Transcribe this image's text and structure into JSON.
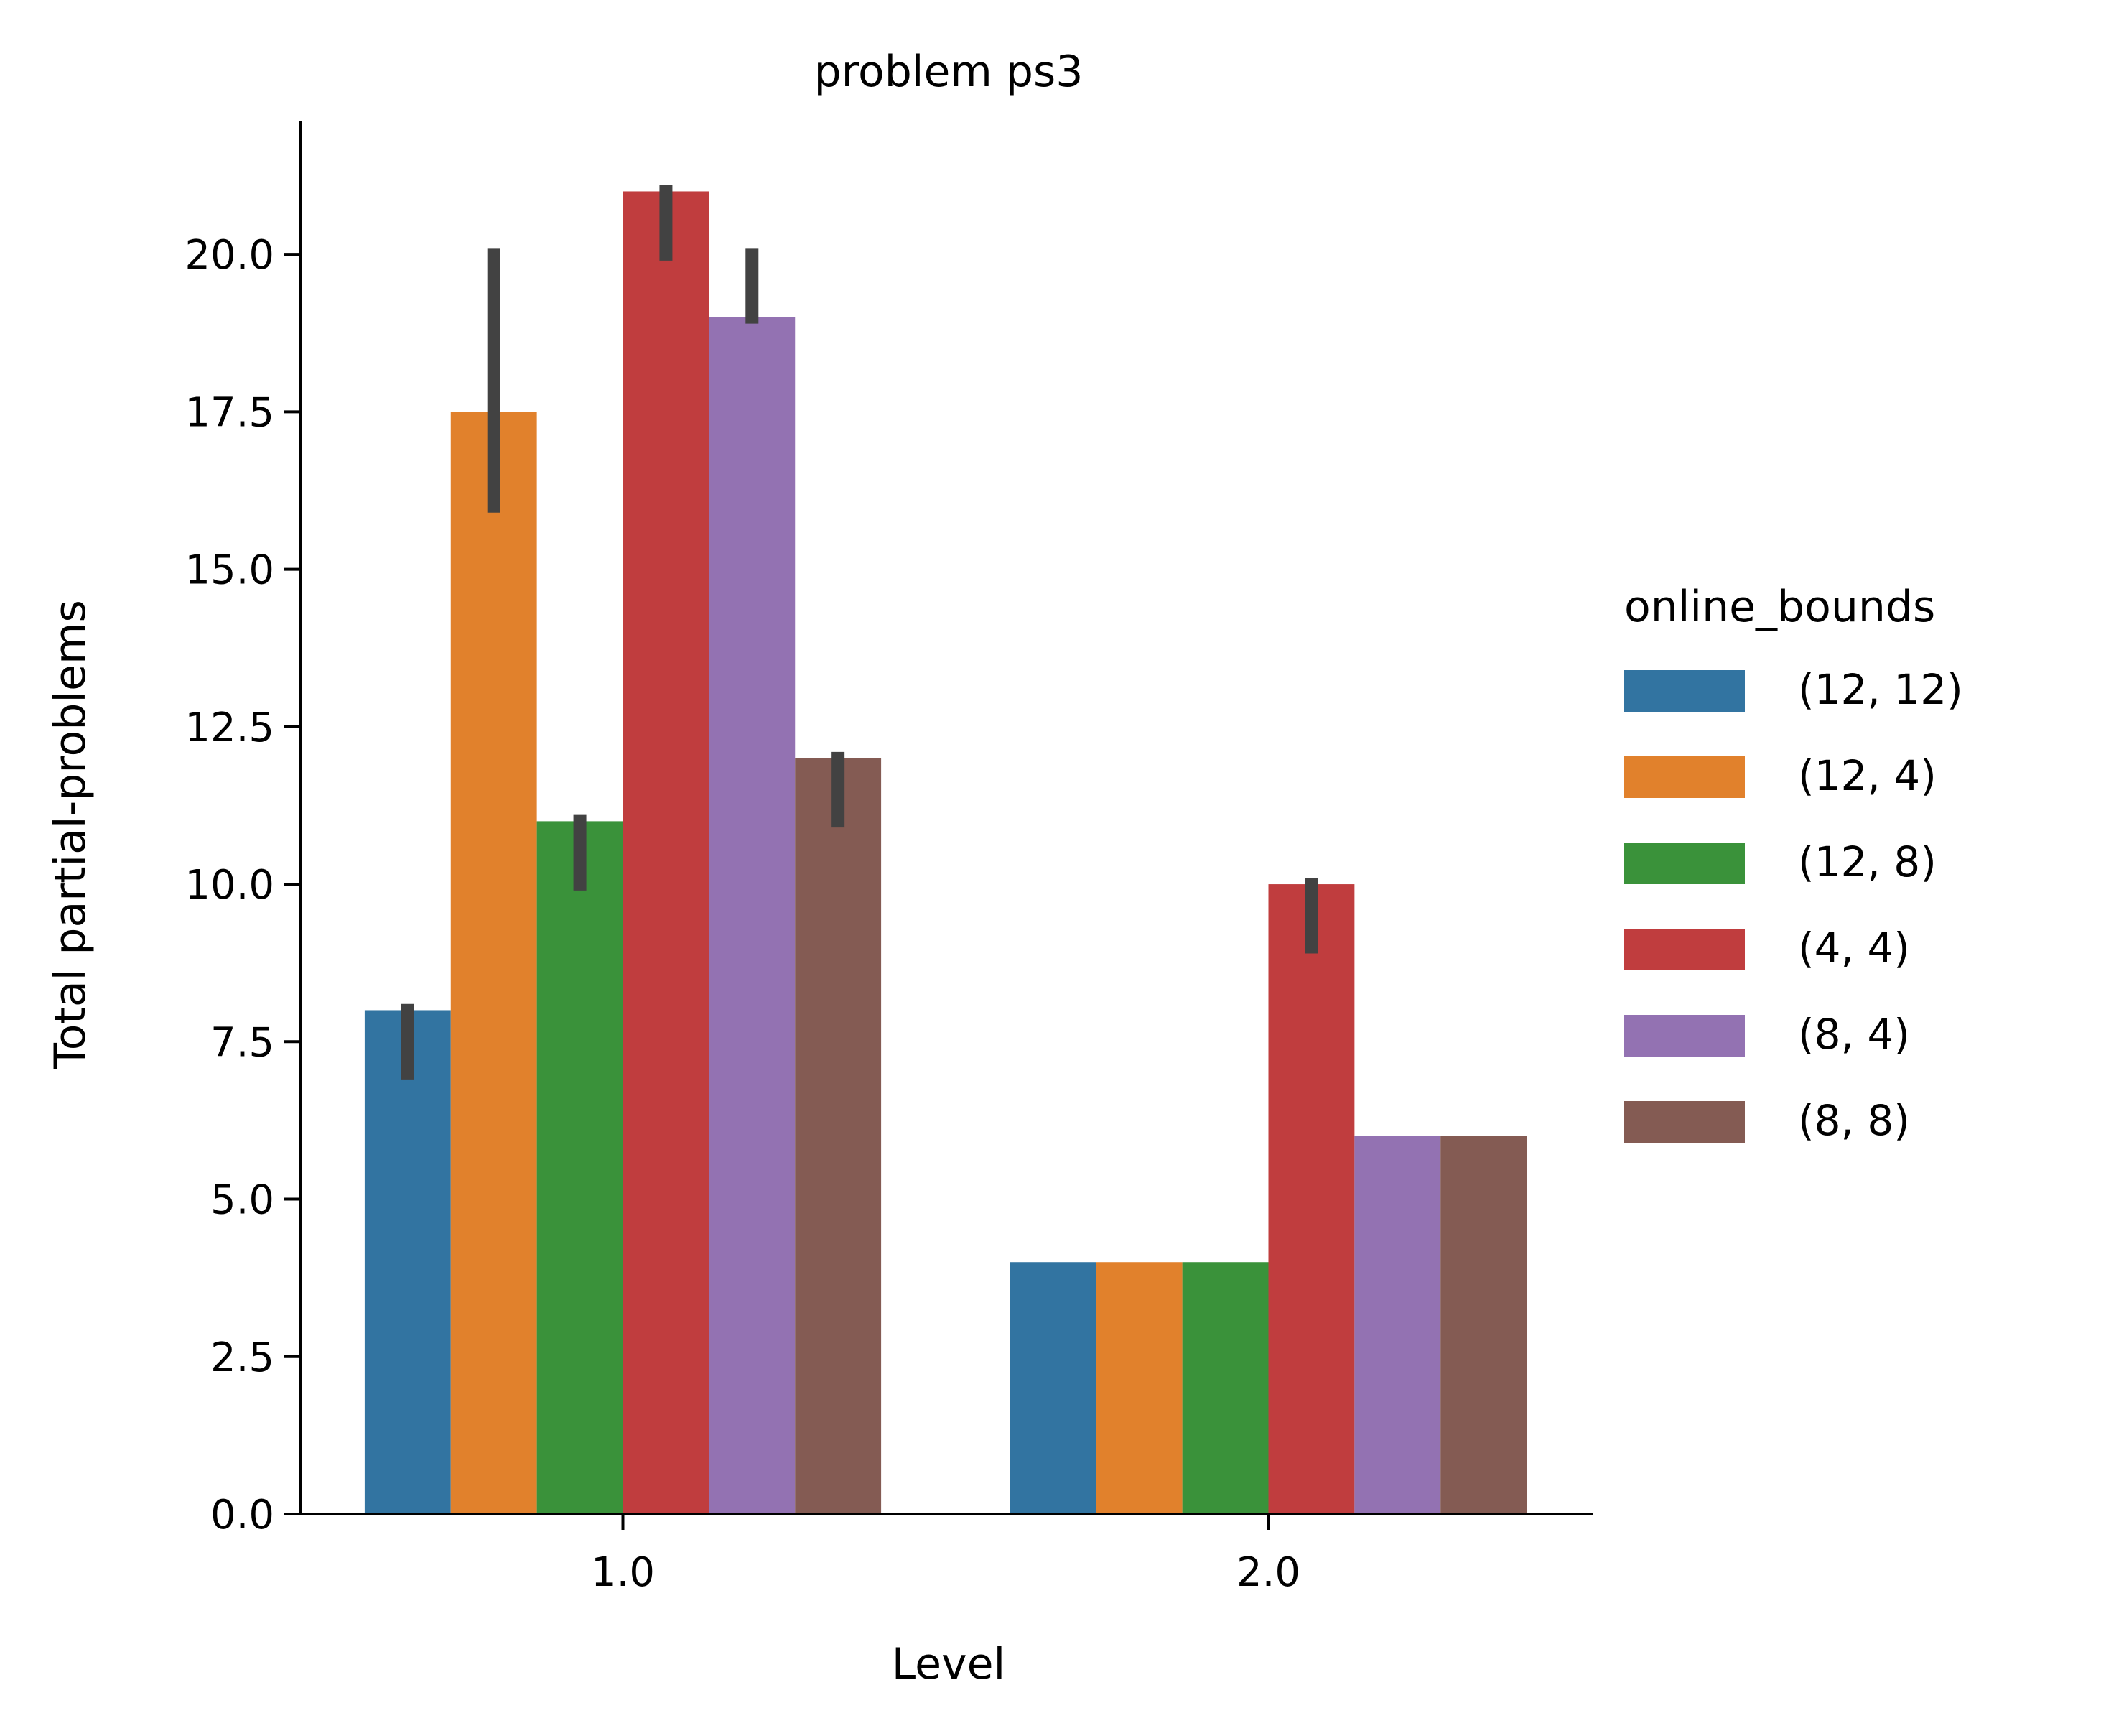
{
  "chart_data": {
    "type": "bar",
    "title": "problem ps3",
    "xlabel": "Level",
    "ylabel": "Total partial-problems",
    "categories": [
      "1.0",
      "2.0"
    ],
    "ylim": [
      0,
      22.1
    ],
    "yticks": [
      "0.0",
      "2.5",
      "5.0",
      "7.5",
      "10.0",
      "12.5",
      "15.0",
      "17.5",
      "20.0"
    ],
    "grid": false,
    "legend": {
      "title": "online_bounds",
      "placement": "right"
    },
    "series": [
      {
        "name": "(12, 12)",
        "color": "#3274a1",
        "values": [
          8,
          4
        ],
        "error": [
          [
            6.9,
            8.1
          ],
          null
        ]
      },
      {
        "name": "(12, 4)",
        "color": "#e1812c",
        "values": [
          17.5,
          4
        ],
        "error": [
          [
            15.9,
            20.1
          ],
          null
        ]
      },
      {
        "name": "(12, 8)",
        "color": "#3a923a",
        "values": [
          11,
          4
        ],
        "error": [
          [
            9.9,
            11.1
          ],
          null
        ]
      },
      {
        "name": "(4, 4)",
        "color": "#c03d3e",
        "values": [
          21,
          10
        ],
        "error": [
          [
            19.9,
            21.1
          ],
          [
            8.9,
            10.1
          ]
        ]
      },
      {
        "name": "(8, 4)",
        "color": "#9372b2",
        "values": [
          19,
          6
        ],
        "error": [
          [
            18.9,
            20.1
          ],
          null
        ]
      },
      {
        "name": "(8, 8)",
        "color": "#845b53",
        "values": [
          12,
          6
        ],
        "error": [
          [
            10.9,
            12.1
          ],
          null
        ]
      }
    ]
  }
}
